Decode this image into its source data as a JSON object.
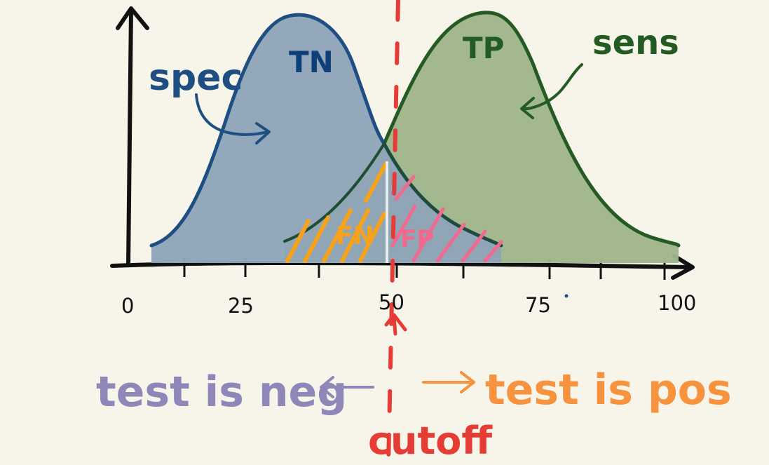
{
  "labels": {
    "tn": "TN",
    "tp": "TP",
    "fn": "FN",
    "fp": "FP",
    "spec": "spec",
    "sens": "sens",
    "negative_side": "test is neg",
    "positive_side": "test is pos",
    "cutoff": "cutoff"
  },
  "axis": {
    "ticks": [
      "0",
      "25",
      "50",
      "75",
      "100"
    ]
  },
  "colors": {
    "background": "#f7f5ea",
    "negative_fill": "#8fa6b8",
    "negative_stroke": "#1f4f82",
    "positive_fill": "#9fb58a",
    "positive_stroke": "#245b24",
    "fn_hatch": "#f7a21a",
    "fp_hatch": "#f06a8f",
    "cutoff": "#e53c35",
    "neg_text": "#8e87b8",
    "pos_text": "#f7933f",
    "axis": "#111111"
  }
}
